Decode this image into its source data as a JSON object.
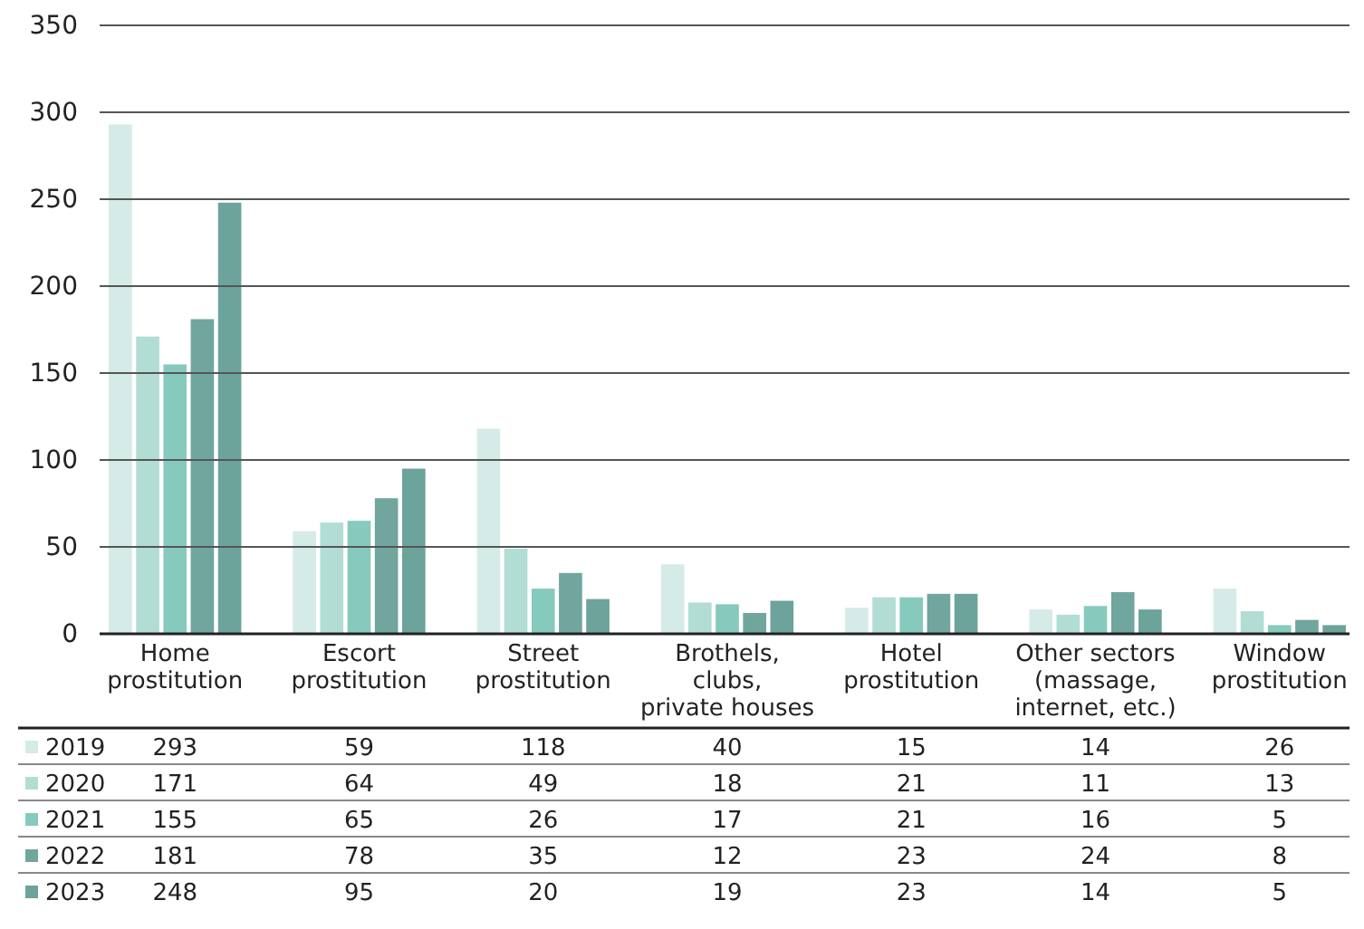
{
  "chart_data": {
    "type": "bar",
    "categories": [
      "Home\nprostitution",
      "Escort\nprostitution",
      "Street\nprostitution",
      "Brothels,\nclubs,\nprivate houses",
      "Hotel\nprostitution",
      "Other sectors\n(massage,\ninternet, etc.)",
      "Window\nprostitution"
    ],
    "series": [
      {
        "name": "2019",
        "color": "#d5ebe7",
        "values": [
          293,
          59,
          118,
          40,
          15,
          14,
          26
        ]
      },
      {
        "name": "2020",
        "color": "#b2ddd4",
        "values": [
          171,
          64,
          49,
          18,
          21,
          11,
          13
        ]
      },
      {
        "name": "2021",
        "color": "#86cabd",
        "values": [
          155,
          65,
          26,
          17,
          21,
          16,
          5
        ]
      },
      {
        "name": "2022",
        "color": "#70a69e",
        "values": [
          181,
          78,
          35,
          12,
          23,
          24,
          8
        ]
      },
      {
        "name": "2023",
        "color": "#6ca39b",
        "values": [
          248,
          95,
          20,
          19,
          23,
          14,
          5
        ]
      }
    ],
    "ylim": [
      0,
      350
    ],
    "yticks": [
      0,
      50,
      100,
      150,
      200,
      250,
      300,
      350
    ],
    "grid": "y",
    "legend": "bottom",
    "data_labels": true
  }
}
